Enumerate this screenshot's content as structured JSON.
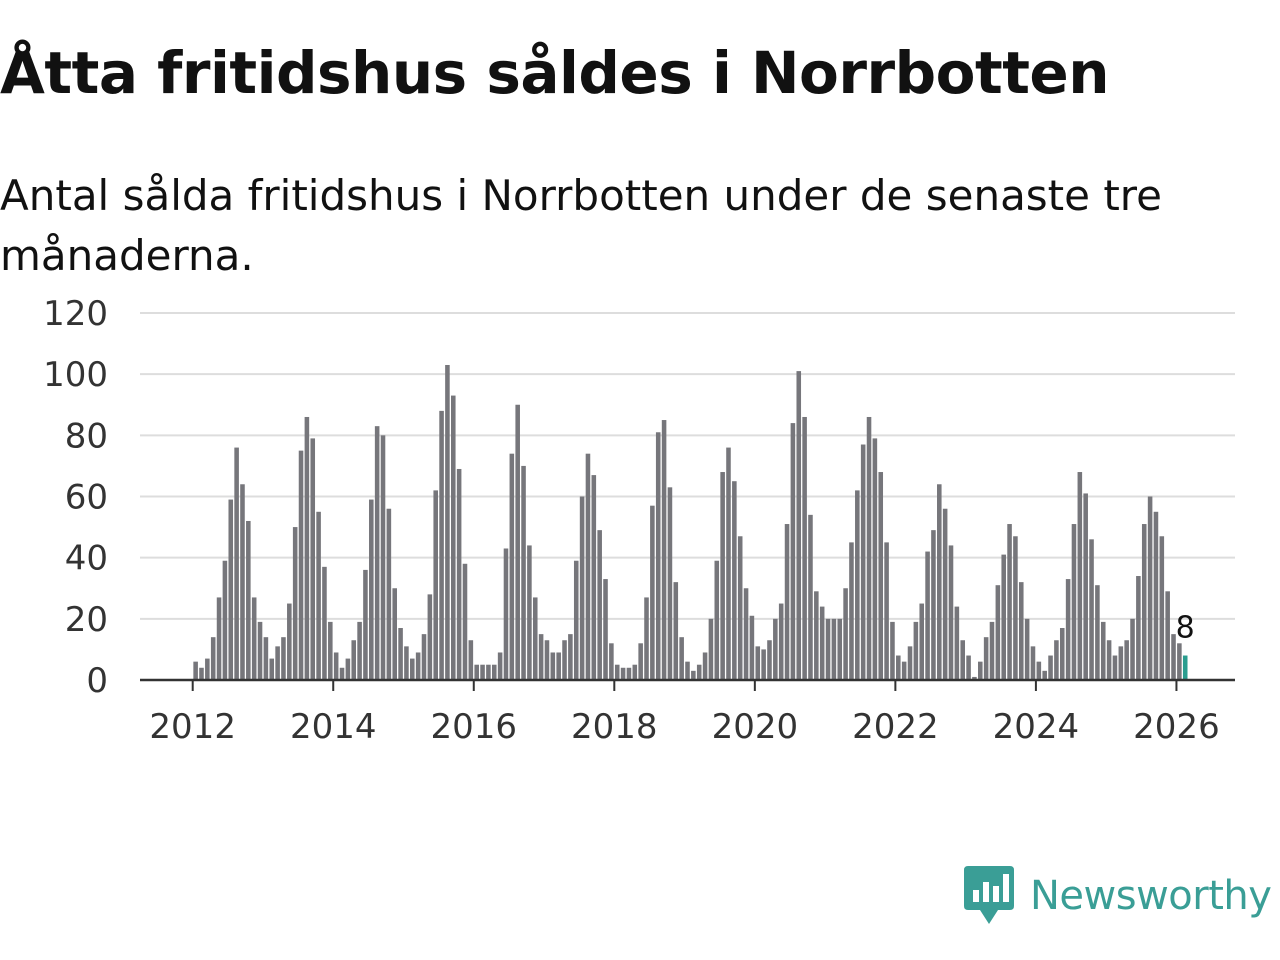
{
  "title": "Åtta fritidshus såldes i Norrbotten",
  "subtitle": "Antal sålda fritidshus i Norrbotten under de senaste tre månaderna.",
  "brand": {
    "name": "Newsworthy",
    "color": "#3a9e96"
  },
  "colors": {
    "bar": "#76767b",
    "highlight": "#2a9d8f",
    "grid": "#dddddd",
    "axis": "#333333",
    "text": "#333333"
  },
  "chart_data": {
    "type": "bar",
    "xlabel": "",
    "ylabel": "",
    "ylim": [
      0,
      120
    ],
    "y_ticks": [
      "0",
      "20",
      "40",
      "60",
      "80",
      "100",
      "120"
    ],
    "x_ticks": [
      "2012",
      "2014",
      "2016",
      "2018",
      "2020",
      "2022",
      "2024",
      "2026"
    ],
    "x_domain": [
      "2011-04",
      "2026-11"
    ],
    "grid": true,
    "legend": "none",
    "start_month": "2012-01",
    "values": [
      6,
      4,
      7,
      14,
      27,
      39,
      59,
      76,
      64,
      52,
      27,
      19,
      14,
      7,
      11,
      14,
      25,
      50,
      75,
      86,
      79,
      55,
      37,
      19,
      9,
      4,
      7,
      13,
      19,
      36,
      59,
      83,
      80,
      56,
      30,
      17,
      11,
      7,
      9,
      15,
      28,
      62,
      88,
      103,
      93,
      69,
      38,
      13,
      5,
      5,
      5,
      5,
      9,
      43,
      74,
      90,
      70,
      44,
      27,
      15,
      13,
      9,
      9,
      13,
      15,
      39,
      60,
      74,
      67,
      49,
      33,
      12,
      5,
      4,
      4,
      5,
      12,
      27,
      57,
      81,
      85,
      63,
      32,
      14,
      6,
      3,
      5,
      9,
      20,
      39,
      68,
      76,
      65,
      47,
      30,
      21,
      11,
      10,
      13,
      20,
      25,
      51,
      84,
      101,
      86,
      54,
      29,
      24,
      20,
      20,
      20,
      30,
      45,
      62,
      77,
      86,
      79,
      68,
      45,
      19,
      8,
      6,
      11,
      19,
      25,
      42,
      49,
      64,
      56,
      44,
      24,
      13,
      8,
      1,
      6,
      14,
      19,
      31,
      41,
      51,
      47,
      32,
      20,
      11,
      6,
      3,
      8,
      13,
      17,
      33,
      51,
      68,
      61,
      46,
      31,
      19,
      13,
      8,
      11,
      13,
      20,
      34,
      51,
      60,
      55,
      47,
      29,
      15,
      12,
      8
    ],
    "highlight_index": 169,
    "highlight_label": "8"
  }
}
